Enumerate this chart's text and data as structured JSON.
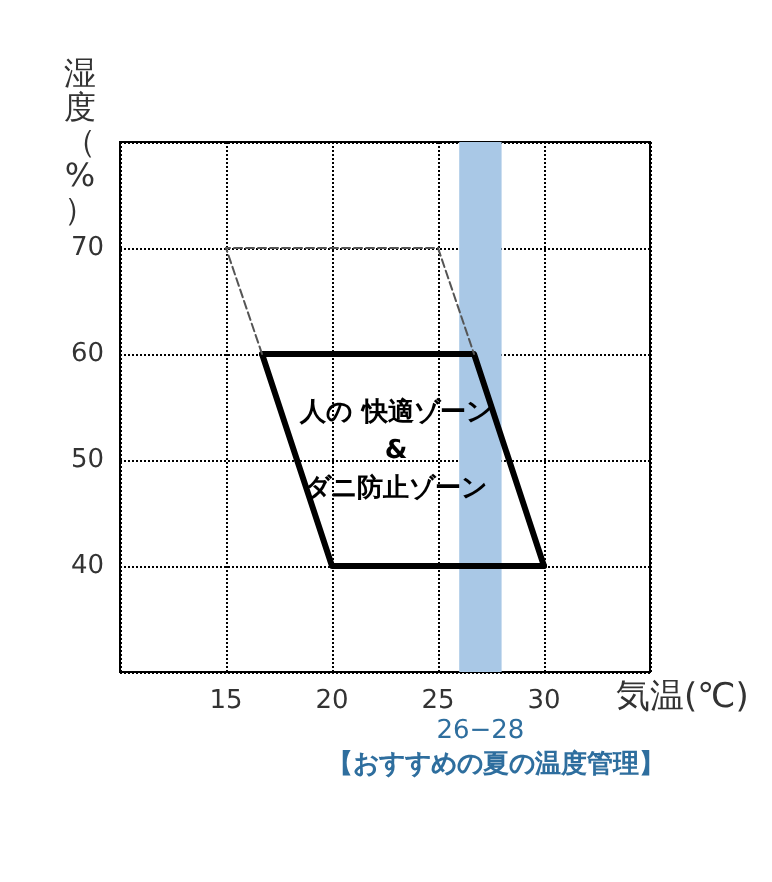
{
  "chart_data": {
    "type": "line",
    "xlabel": "気温(℃)",
    "ylabel": "湿度（%）",
    "xlim": [
      10,
      35
    ],
    "xticks": [
      15,
      20,
      25,
      30
    ],
    "ylim": [
      30,
      80
    ],
    "yticks": [
      40,
      50,
      60,
      70
    ],
    "grid": true,
    "marker": "none",
    "series": [
      {
        "color": "#000000",
        "line_style": "solid",
        "x": [
          16.7,
          26.7,
          30
        ],
        "values": [
          60,
          60,
          40
        ]
      },
      {
        "color": "#000000",
        "line_style": "solid",
        "x": [
          16.7,
          20,
          30
        ],
        "values": [
          60,
          40,
          40
        ]
      },
      {
        "color": "#555555",
        "line_style": "dashed",
        "x": [
          16.7,
          15,
          25,
          26.7
        ],
        "values": [
          60,
          70,
          70,
          60
        ]
      }
    ],
    "bands": [
      {
        "axis": "x",
        "from": 26,
        "to": 28,
        "label": "26−28",
        "color": "#a9c8e6"
      }
    ],
    "annotations": [
      "人の 快適ゾーン\n&\nダニ防止ゾーン",
      "【おすすめの夏の温度管理】"
    ]
  }
}
